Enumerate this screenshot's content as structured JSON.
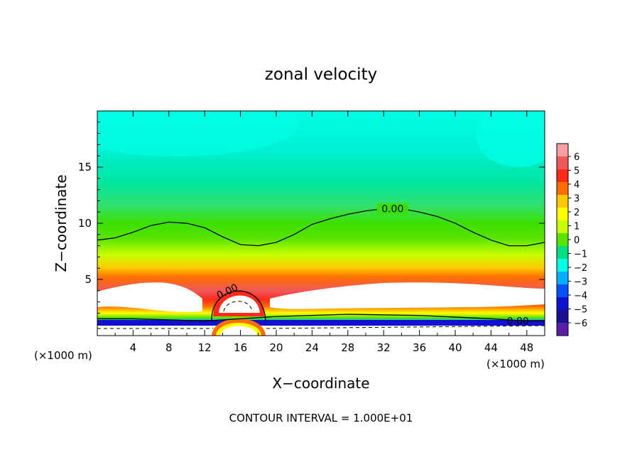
{
  "chart_data": {
    "type": "heatmap",
    "title": "zonal velocity",
    "xlabel": "X−coordinate",
    "ylabel": "Z−coordinate",
    "x_unit_left": "(×1000 m)",
    "x_unit_right": "(×1000 m)",
    "xlim": [
      0,
      50
    ],
    "ylim": [
      0,
      20
    ],
    "x_ticks": [
      4,
      8,
      12,
      16,
      20,
      24,
      28,
      32,
      36,
      40,
      44,
      48
    ],
    "x_tick_labels": [
      "4",
      "8",
      "12",
      "16",
      "20",
      "24",
      "28",
      "32",
      "36",
      "40",
      "44",
      "48"
    ],
    "y_ticks": [
      5,
      10,
      15
    ],
    "y_tick_labels": [
      "5",
      "10",
      "15"
    ],
    "colorbar": {
      "levels": [
        6,
        5,
        4,
        3,
        2,
        1,
        0,
        -1,
        -2,
        -3,
        -4,
        -5,
        -6
      ],
      "labels": [
        "6",
        "5",
        "4",
        "3",
        "2",
        "1",
        "0",
        "−1",
        "−2",
        "−3",
        "−4",
        "−5",
        "−6"
      ],
      "colors": [
        "#f4a0a0",
        "#ee5a5a",
        "#ff2a18",
        "#ff6e00",
        "#ffc800",
        "#ffff00",
        "#c8ff00",
        "#5ae400",
        "#00e082",
        "#00ffe4",
        "#00b0ff",
        "#0050ff",
        "#1010d0",
        "#1c1290",
        "#5a1ea8"
      ]
    },
    "zero_contour": {
      "label": "0.00",
      "x": [
        0,
        2,
        4,
        6,
        8,
        10,
        12,
        14,
        16,
        18,
        20,
        22,
        24,
        26,
        28,
        30,
        32,
        34,
        36,
        38,
        40,
        42,
        44,
        46,
        48,
        50
      ],
      "z": [
        8.5,
        8.7,
        9.2,
        9.8,
        10.1,
        10.0,
        9.6,
        8.8,
        8.1,
        8.0,
        8.3,
        9.0,
        9.9,
        10.4,
        10.8,
        11.1,
        11.3,
        11.3,
        11.0,
        10.6,
        10.0,
        9.2,
        8.5,
        8.0,
        8.0,
        8.3
      ]
    },
    "low_zero_contour": {
      "label": "0.00",
      "x": [
        0,
        4,
        8,
        12,
        20,
        28,
        36,
        44,
        48,
        50
      ],
      "z": [
        1.5,
        1.5,
        1.4,
        1.3,
        1.7,
        1.9,
        1.8,
        1.5,
        1.3,
        1.3
      ]
    },
    "dome_label": "0.00",
    "contour_interval_text": "CONTOUR INTERVAL = 1.000E+01"
  }
}
